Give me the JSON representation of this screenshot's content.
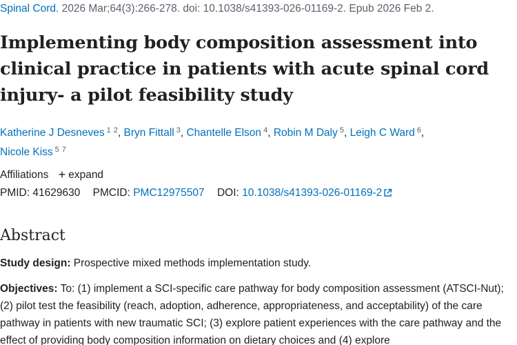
{
  "citation": {
    "journal": "Spinal Cord.",
    "details": " 2026 Mar;64(3):266-278. doi: 10.1038/s41393-026-01169-2. Epub 2026 Feb 2."
  },
  "article": {
    "title": "Implementing body composition assessment into clinical practice in patients with acute spinal cord injury- a pilot feasibility study"
  },
  "authors": [
    {
      "name": "Katherine J Desneves",
      "affs": [
        "1",
        "2"
      ]
    },
    {
      "name": "Bryn Fittall",
      "affs": [
        "3"
      ]
    },
    {
      "name": "Chantelle Elson",
      "affs": [
        "4"
      ]
    },
    {
      "name": "Robin M Daly",
      "affs": [
        "5"
      ]
    },
    {
      "name": "Leigh C Ward",
      "affs": [
        "6"
      ]
    },
    {
      "name": "Nicole Kiss",
      "affs": [
        "5",
        "7"
      ]
    }
  ],
  "affiliations": {
    "label": "Affiliations",
    "expand_label": "expand"
  },
  "identifiers": {
    "pmid_label": "PMID:",
    "pmid": "41629630",
    "pmcid_label": "PMCID:",
    "pmcid": "PMC12975507",
    "doi_label": "DOI:",
    "doi": "10.1038/s41393-026-01169-2"
  },
  "abstract": {
    "heading": "Abstract",
    "study_design_label": "Study design:",
    "study_design_text": " Prospective mixed methods implementation study.",
    "objectives_label": "Objectives:",
    "objectives_text": " To: (1) implement a SCI-specific care pathway for body composition assessment (ATSCI-Nut); (2) pilot test the feasibility (reach, adoption, adherence, appropriateness, and acceptability) of the care pathway in patients with new traumatic SCI; (3) explore patient experiences with the care pathway and the effect of providing body composition information on dietary choices and (4) explore"
  },
  "colors": {
    "link": "#0071bc",
    "text": "#212121",
    "muted": "#5b616b"
  },
  "icons": [
    "external-link-icon",
    "plus-icon"
  ]
}
